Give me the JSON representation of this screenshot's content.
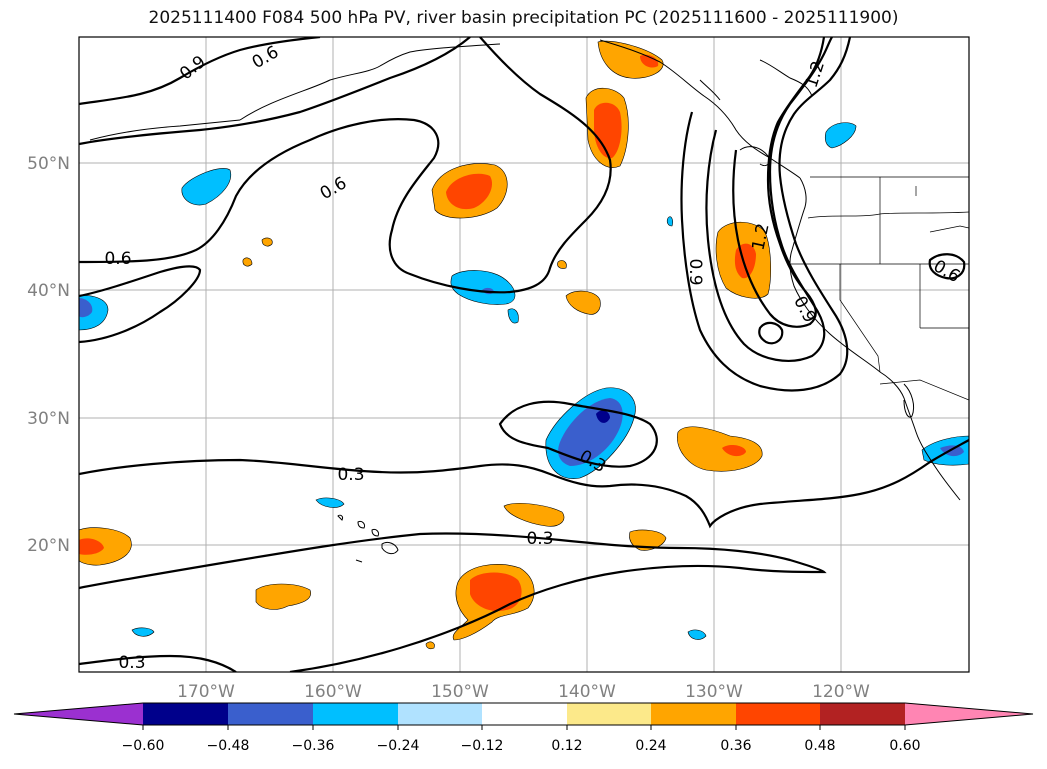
{
  "title": "2025111400 F084 500 hPa PV, river basin precipitation PC (2025111600 - 2025111900)",
  "axes": {
    "lon_labels": [
      "170°W",
      "160°W",
      "150°W",
      "140°W",
      "130°W",
      "120°W"
    ],
    "lat_labels": [
      "50°N",
      "40°N",
      "30°N",
      "20°N"
    ]
  },
  "contours": {
    "labels": [
      "0.9",
      "0.6",
      "0.6",
      "0.6",
      "1.2",
      "1.2",
      "0.9",
      "0.9",
      "0.6",
      "0.3",
      "0.3",
      "0.3",
      "0.3",
      "0.6"
    ]
  },
  "colorbar": {
    "ticks": [
      "−0.60",
      "−0.48",
      "−0.36",
      "−0.24",
      "−0.12",
      "0.12",
      "0.24",
      "0.36",
      "0.48",
      "0.60"
    ],
    "colors": [
      "#9b30d0",
      "#00008b",
      "#3a5fcd",
      "#00bfff",
      "#b0e2ff",
      "#ffffff",
      "#fce98a",
      "#ffa500",
      "#ff4500",
      "#b22222",
      "#ff85b3"
    ]
  }
}
